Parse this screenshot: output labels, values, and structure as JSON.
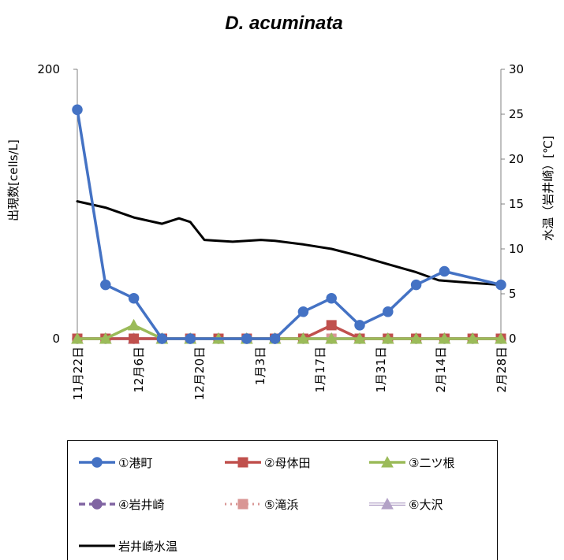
{
  "chart_data": {
    "type": "line",
    "title": "D. acuminata",
    "ylabel_left": "出現数[cells/L]",
    "ylabel_right": "水温（岩井崎）[℃]",
    "ylim_left": [
      0,
      200
    ],
    "yticks_left": [
      "0",
      "200"
    ],
    "ylim_right": [
      0,
      30
    ],
    "yticks_right": [
      "0",
      "5",
      "10",
      "15",
      "20",
      "25",
      "30"
    ],
    "x_tick_labels": [
      "11月22日",
      "12月6日",
      "12月20日",
      "1月3日",
      "1月17日",
      "1月31日",
      "2月14日",
      "2月28日"
    ],
    "series": [
      {
        "name": "①港町",
        "color": "#4472C4",
        "marker": "circle",
        "dash": "solid",
        "points": [
          [
            0,
            170
          ],
          [
            1,
            40
          ],
          [
            2,
            30
          ],
          [
            3,
            0
          ],
          [
            4,
            0
          ],
          [
            6,
            0
          ],
          [
            7,
            0
          ],
          [
            8,
            20
          ],
          [
            9,
            30
          ],
          [
            10,
            10
          ],
          [
            11,
            20
          ],
          [
            12,
            40
          ],
          [
            13,
            50
          ],
          [
            15,
            40
          ]
        ]
      },
      {
        "name": "②母体田",
        "color": "#C0504D",
        "marker": "square",
        "dash": "solid",
        "points": [
          [
            0,
            0
          ],
          [
            1,
            0
          ],
          [
            2,
            0
          ],
          [
            3,
            0
          ],
          [
            4,
            0
          ],
          [
            5,
            0
          ],
          [
            6,
            0
          ],
          [
            7,
            0
          ],
          [
            8,
            0
          ],
          [
            9,
            10
          ],
          [
            10,
            0
          ],
          [
            11,
            0
          ],
          [
            12,
            0
          ],
          [
            13,
            0
          ],
          [
            14,
            0
          ],
          [
            15,
            0
          ]
        ]
      },
      {
        "name": "③二ツ根",
        "color": "#9BBB59",
        "marker": "triangle",
        "dash": "solid",
        "points": [
          [
            0,
            0
          ],
          [
            1,
            0
          ],
          [
            2,
            10
          ],
          [
            3,
            0
          ],
          [
            4,
            0
          ],
          [
            5,
            0
          ],
          [
            6,
            0
          ],
          [
            7,
            0
          ],
          [
            8,
            0
          ],
          [
            9,
            0
          ],
          [
            10,
            0
          ],
          [
            11,
            0
          ],
          [
            12,
            0
          ],
          [
            13,
            0
          ],
          [
            14,
            0
          ],
          [
            15,
            0
          ]
        ]
      },
      {
        "name": "④岩井崎",
        "color": "#8064A2",
        "marker": "circle",
        "dash": "dash",
        "points": [
          [
            0,
            0
          ],
          [
            1,
            0
          ],
          [
            2,
            0
          ],
          [
            3,
            0
          ],
          [
            4,
            0
          ],
          [
            5,
            0
          ],
          [
            6,
            0
          ],
          [
            7,
            0
          ],
          [
            8,
            0
          ],
          [
            9,
            0
          ],
          [
            10,
            0
          ],
          [
            11,
            0
          ],
          [
            12,
            0
          ],
          [
            13,
            0
          ],
          [
            14,
            0
          ],
          [
            15,
            0
          ]
        ]
      },
      {
        "name": "⑤滝浜",
        "color": "#D99694",
        "marker": "square",
        "dash": "dot",
        "points": [
          [
            0,
            0
          ],
          [
            1,
            0
          ],
          [
            2,
            0
          ],
          [
            3,
            0
          ],
          [
            4,
            0
          ],
          [
            5,
            0
          ],
          [
            6,
            0
          ],
          [
            7,
            0
          ],
          [
            8,
            0
          ],
          [
            9,
            0
          ],
          [
            10,
            0
          ],
          [
            11,
            0
          ],
          [
            12,
            0
          ],
          [
            13,
            0
          ],
          [
            14,
            0
          ],
          [
            15,
            0
          ]
        ]
      },
      {
        "name": "⑥大沢",
        "color": "#B3A2C7",
        "marker": "triangle",
        "dash": "double",
        "points": [
          [
            0,
            0
          ],
          [
            1,
            0
          ],
          [
            2,
            0
          ],
          [
            3,
            0
          ],
          [
            4,
            0
          ],
          [
            5,
            0
          ],
          [
            6,
            0
          ],
          [
            7,
            0
          ],
          [
            8,
            0
          ],
          [
            9,
            0
          ],
          [
            10,
            0
          ],
          [
            11,
            0
          ],
          [
            12,
            0
          ],
          [
            13,
            0
          ],
          [
            14,
            0
          ],
          [
            15,
            0
          ]
        ]
      },
      {
        "name": "岩井崎水温",
        "color": "#000000",
        "marker": "none",
        "dash": "solid",
        "axis": "right",
        "points": [
          [
            0,
            15.3
          ],
          [
            1,
            14.6
          ],
          [
            2,
            13.5
          ],
          [
            3,
            12.8
          ],
          [
            3.6,
            13.4
          ],
          [
            4,
            13.0
          ],
          [
            4.5,
            11.0
          ],
          [
            5.5,
            10.8
          ],
          [
            6.5,
            11.0
          ],
          [
            7,
            10.9
          ],
          [
            8,
            10.5
          ],
          [
            9,
            10.0
          ],
          [
            10,
            9.2
          ],
          [
            11,
            8.3
          ],
          [
            12,
            7.4
          ],
          [
            12.8,
            6.5
          ],
          [
            14,
            6.2
          ],
          [
            15,
            6.0
          ]
        ]
      }
    ]
  }
}
